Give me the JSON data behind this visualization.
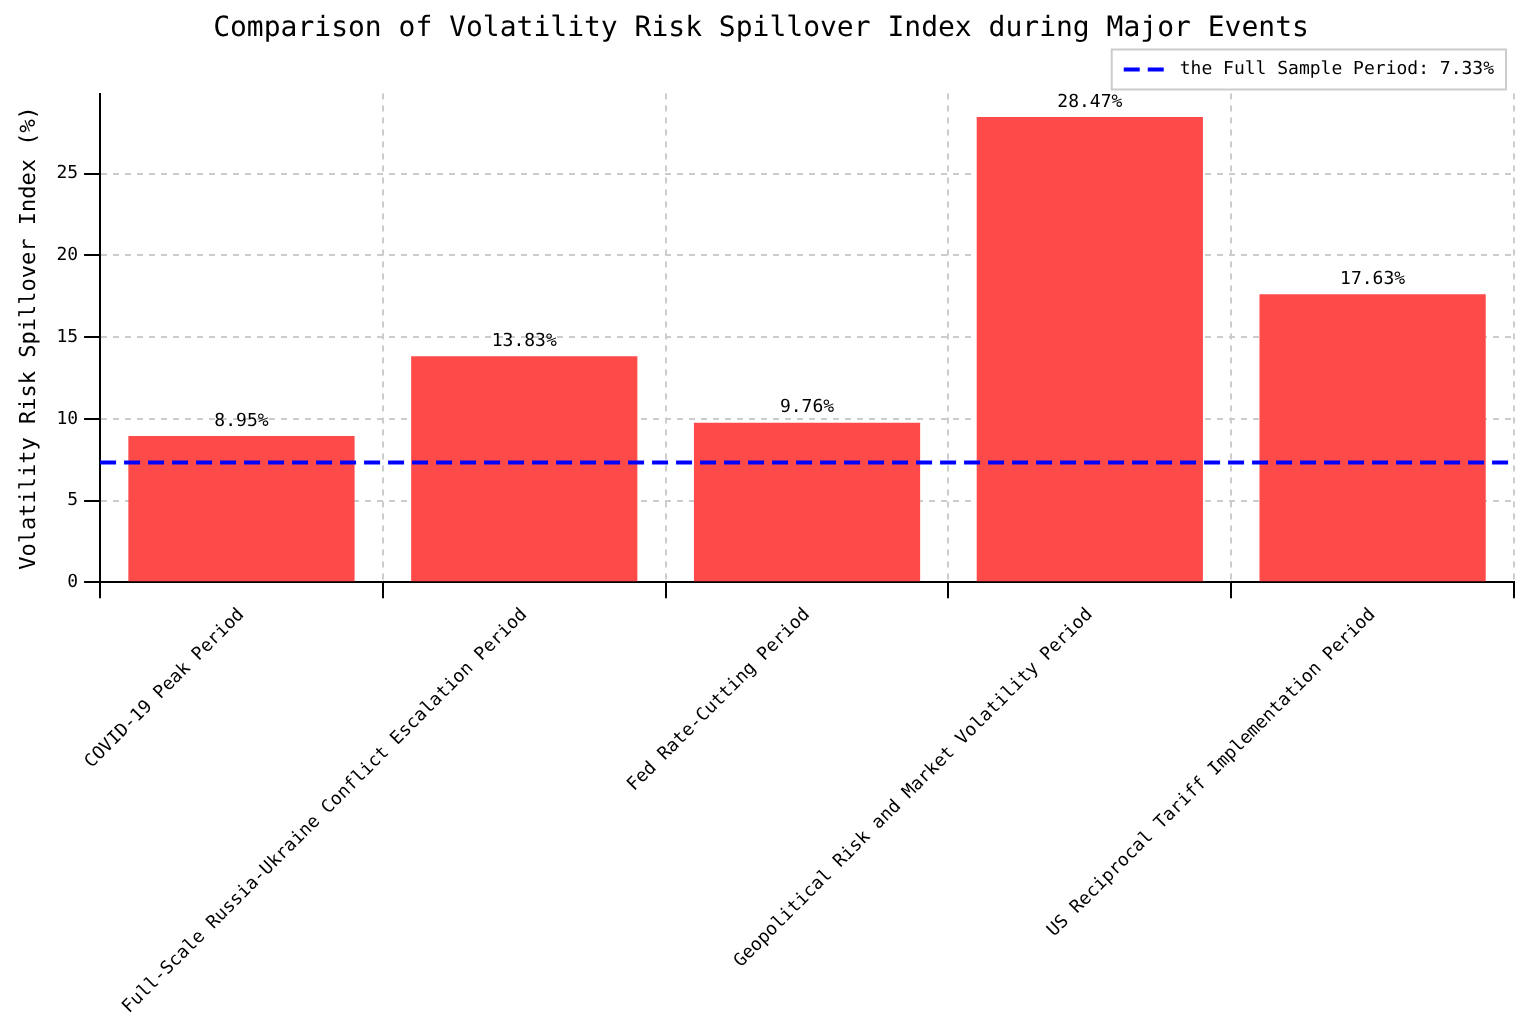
{
  "chart_data": {
    "type": "bar",
    "title": "Comparison of Volatility Risk Spillover Index during Major Events",
    "ylabel": "Volatility Risk Spillover Index (%)",
    "categories": [
      "COVID-19 Peak Period",
      "Full-Scale Russia-Ukraine Conflict Escalation Period",
      "Fed Rate-Cutting Period",
      "Geopolitical Risk and Market Volatility Period",
      "US Reciprocal Tariff Implementation Period"
    ],
    "values": [
      8.95,
      13.83,
      9.76,
      28.47,
      17.63
    ],
    "value_labels": [
      "8.95%",
      "13.83%",
      "9.76%",
      "28.47%",
      "17.63%"
    ],
    "color": "#ff4a4a",
    "ylim": [
      0,
      29.9
    ],
    "yticks": [
      0,
      5,
      10,
      15,
      20,
      25
    ],
    "grid": true,
    "legend": "top right",
    "ref_lines": [
      {
        "axis": "y",
        "value": 7.33,
        "label": "the Full Sample Period: 7.33%",
        "color": "#0000ff",
        "line_style": "dashed"
      }
    ]
  }
}
